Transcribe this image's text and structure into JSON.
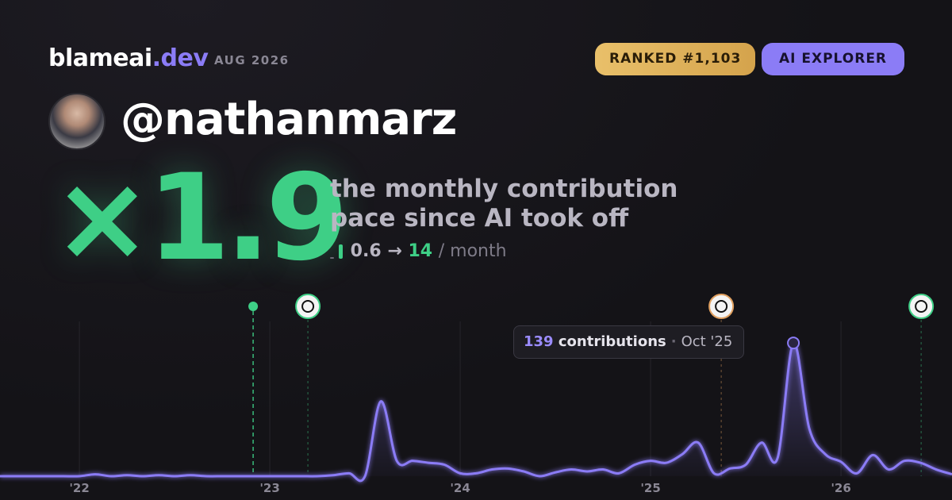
{
  "header": {
    "brand": "blameai",
    "brand_tld": ".dev",
    "date": "AUG 2026",
    "rank": "RANKED #1,103",
    "persona": "AI EXPLORER"
  },
  "hero": {
    "handle": "@nathanmarz",
    "multiplier": "×1.9",
    "description": [
      "the monthly contribution",
      "pace since AI took off"
    ],
    "pace_before": "0.6",
    "pace_arrow": "→",
    "pace_after": "14",
    "pace_unit": "/ month"
  },
  "chart_data": {
    "type": "line",
    "x": [
      2021.583,
      2021.667,
      2021.75,
      2021.833,
      2021.917,
      2022.0,
      2022.083,
      2022.167,
      2022.25,
      2022.333,
      2022.417,
      2022.5,
      2022.583,
      2022.667,
      2022.75,
      2022.833,
      2022.917,
      2023.0,
      2023.083,
      2023.167,
      2023.25,
      2023.333,
      2023.417,
      2023.5,
      2023.583,
      2023.667,
      2023.75,
      2023.833,
      2023.917,
      2024.0,
      2024.083,
      2024.167,
      2024.25,
      2024.333,
      2024.417,
      2024.5,
      2024.583,
      2024.667,
      2024.75,
      2024.833,
      2024.917,
      2025.0,
      2025.083,
      2025.167,
      2025.25,
      2025.333,
      2025.417,
      2025.5,
      2025.583,
      2025.667,
      2025.75,
      2025.833,
      2025.917,
      2026.0,
      2026.083,
      2026.167,
      2026.25,
      2026.333,
      2026.417,
      2026.5,
      2026.583
    ],
    "series": [
      {
        "name": "contributions",
        "color": "#8b7cf6",
        "values": [
          0,
          0,
          0,
          0,
          0,
          0,
          2,
          0,
          1,
          0,
          1,
          0,
          1,
          0,
          0,
          0,
          0,
          0,
          0,
          0,
          0,
          1,
          3,
          0,
          78,
          16,
          16,
          14,
          12,
          3,
          3,
          7,
          8,
          5,
          0,
          4,
          7,
          5,
          7,
          3,
          12,
          16,
          14,
          23,
          35,
          3,
          8,
          12,
          35,
          19,
          139,
          50,
          23,
          15,
          3,
          22,
          7,
          16,
          14,
          7,
          2
        ]
      }
    ],
    "xlim": [
      2021.583,
      2026.583
    ],
    "ylim": [
      0,
      145
    ],
    "xticks": [
      {
        "value": 2022,
        "label": "'22"
      },
      {
        "value": 2023,
        "label": "'23"
      },
      {
        "value": 2024,
        "label": "'24"
      },
      {
        "value": 2025,
        "label": "'25"
      },
      {
        "value": 2026,
        "label": "'26"
      }
    ],
    "grid": true,
    "events": [
      {
        "x": 2022.9125,
        "color": "#3ecf86",
        "marker": "dot"
      },
      {
        "x": 2023.2,
        "color": "#3ecf86",
        "marker": "icon"
      },
      {
        "x": 2025.371,
        "color": "#e0a060",
        "marker": "icon"
      },
      {
        "x": 2026.421,
        "color": "#3ecf86",
        "marker": "icon"
      }
    ],
    "highlight": 50,
    "tooltip": {
      "label": "contributions",
      "date": "Oct '25"
    }
  }
}
